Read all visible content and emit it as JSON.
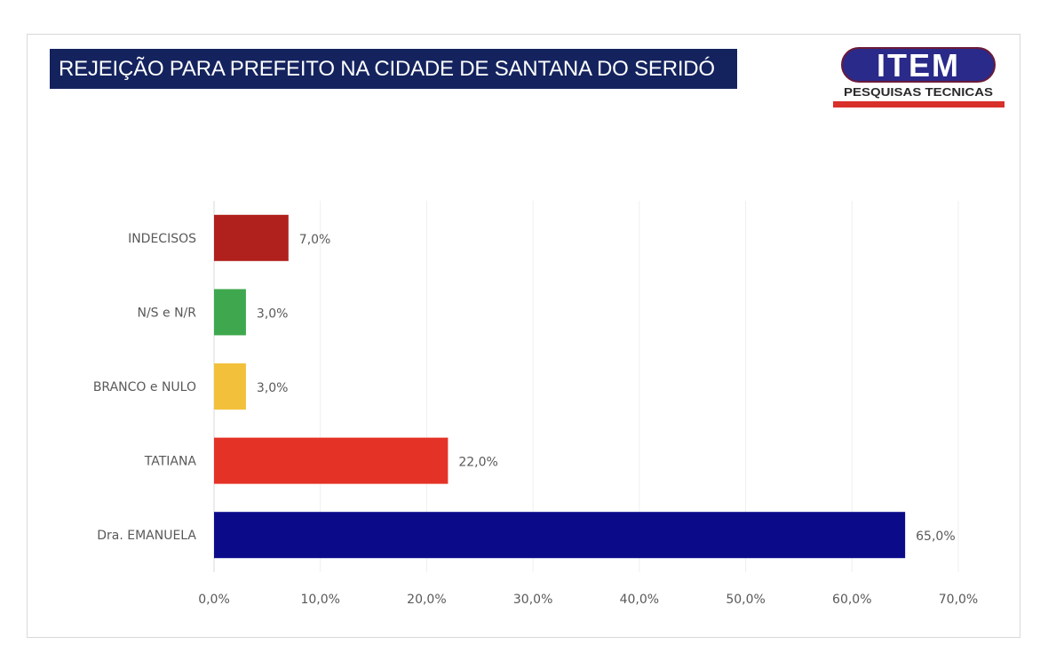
{
  "logo": {
    "main": "ITEM",
    "sub": "PESQUISAS TECNICAS"
  },
  "chart_data": {
    "type": "bar",
    "orientation": "horizontal",
    "title": "REJEIÇÃO PARA PREFEITO NA CIDADE DE SANTANA DO SERIDÓ",
    "categories": [
      "INDECISOS",
      "N/S e N/R",
      "BRANCO e NULO",
      "TATIANA",
      "Dra. EMANUELA"
    ],
    "values": [
      7.0,
      3.0,
      3.0,
      22.0,
      65.0
    ],
    "data_labels": [
      "7,0%",
      "3,0%",
      "3,0%",
      "22,0%",
      "65,0%"
    ],
    "colors": [
      "#b0201c",
      "#3fa84e",
      "#f3c03b",
      "#e53226",
      "#0b0b8a"
    ],
    "xlim": [
      0,
      70
    ],
    "x_ticks": [
      "0,0%",
      "10,0%",
      "20,0%",
      "30,0%",
      "40,0%",
      "50,0%",
      "60,0%",
      "70,0%"
    ],
    "xlabel": "",
    "ylabel": "",
    "grid": "vertical",
    "legend": "none"
  }
}
